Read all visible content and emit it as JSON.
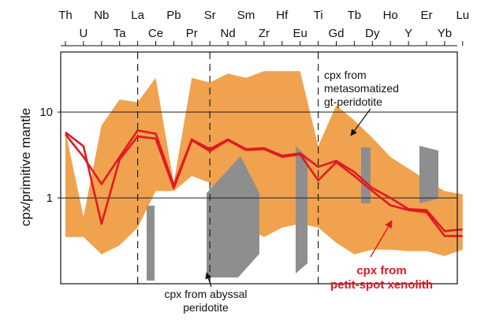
{
  "chart_data": {
    "type": "line",
    "ylabel": "cpx/primitive mantle",
    "yscale": "log",
    "ylim": [
      0.1,
      50
    ],
    "yticks": [
      {
        "value": 1,
        "label": "1"
      },
      {
        "value": 10,
        "label": "10"
      }
    ],
    "categories": [
      "Th",
      "U",
      "Nb",
      "Ta",
      "La",
      "Ce",
      "Pb",
      "Pr",
      "Sr",
      "Nd",
      "Sm",
      "Zr",
      "Hf",
      "Eu",
      "Ti",
      "Gd",
      "Tb",
      "Dy",
      "Ho",
      "Y",
      "Er",
      "Yb",
      "Lu"
    ],
    "category_rows": [
      "top",
      "bottom",
      "top",
      "bottom",
      "top",
      "bottom",
      "top",
      "bottom",
      "top",
      "bottom",
      "top",
      "bottom",
      "top",
      "bottom",
      "top",
      "bottom",
      "top",
      "bottom",
      "top",
      "bottom",
      "top",
      "bottom",
      "top"
    ],
    "dashed_at": [
      "La",
      "Sr",
      "Ti"
    ],
    "series": [
      {
        "name": "cpx from petit-spot xenolith",
        "color": "#e01a22",
        "values": [
          5.8,
          4.0,
          0.5,
          2.8,
          5.2,
          4.9,
          1.3,
          4.7,
          3.5,
          4.7,
          3.6,
          3.7,
          3.0,
          3.2,
          1.6,
          2.6,
          1.8,
          1.2,
          0.82,
          0.72,
          0.68,
          0.36,
          0.36
        ]
      },
      {
        "name": "cpx from petit-spot xenolith",
        "color": "#e01a22",
        "values": [
          5.5,
          3.0,
          1.45,
          3.0,
          6.1,
          5.6,
          1.4,
          4.8,
          3.7,
          4.8,
          3.7,
          3.8,
          3.1,
          3.3,
          2.3,
          2.7,
          2.0,
          1.3,
          1.0,
          0.74,
          0.72,
          0.41,
          0.43
        ]
      }
    ],
    "fields": [
      {
        "name": "cpx from metasomatized gt-peridotite",
        "color": "#f0a24e",
        "upper": [
          6.0,
          0.6,
          7.0,
          14.0,
          13.0,
          25.0,
          1.5,
          25.0,
          22.0,
          28.0,
          25.0,
          30.0,
          30.0,
          30.0,
          4.0,
          12.0,
          8.0,
          5.0,
          3.0,
          2.2,
          1.6,
          1.2,
          1.1
        ],
        "lower": [
          0.35,
          0.35,
          0.22,
          0.28,
          0.45,
          1.2,
          1.2,
          1.8,
          1.5,
          0.25,
          0.45,
          0.35,
          0.45,
          0.5,
          0.45,
          0.3,
          0.22,
          0.25,
          0.25,
          0.24,
          0.24,
          0.21,
          0.25
        ]
      }
    ],
    "bars": [
      {
        "name": "cpx from abyssal peridotite",
        "color": "#8e8e8e"
      }
    ],
    "annotations": [
      {
        "lines": [
          "cpx from",
          "metasomatized",
          "gt-peridotite"
        ],
        "color": "#111111"
      },
      {
        "lines": [
          "cpx from abyssal",
          "peridotite"
        ],
        "color": "#111111"
      },
      {
        "lines": [
          "cpx from",
          "petit-spot xenolith"
        ],
        "color": "#e01a22"
      }
    ]
  }
}
